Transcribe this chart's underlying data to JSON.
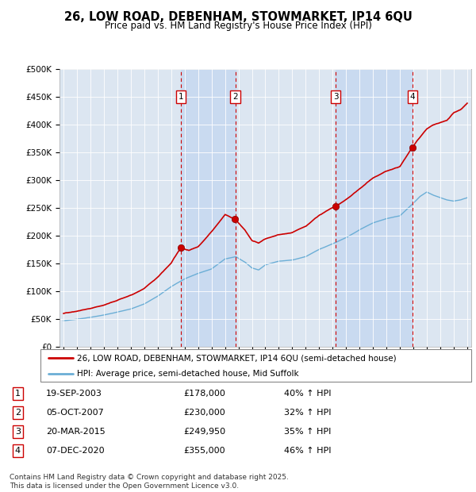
{
  "title": "26, LOW ROAD, DEBENHAM, STOWMARKET, IP14 6QU",
  "subtitle": "Price paid vs. HM Land Registry's House Price Index (HPI)",
  "house_color": "#cc0000",
  "hpi_color": "#6baed6",
  "shade_color": "#c6d9f0",
  "plot_bg": "#dce6f1",
  "legend_house": "26, LOW ROAD, DEBENHAM, STOWMARKET, IP14 6QU (semi-detached house)",
  "legend_hpi": "HPI: Average price, semi-detached house, Mid Suffolk",
  "footer": "Contains HM Land Registry data © Crown copyright and database right 2025.\nThis data is licensed under the Open Government Licence v3.0.",
  "transactions": [
    {
      "num": 1,
      "date": "19-SEP-2003",
      "price": "£178,000",
      "change": "40% ↑ HPI",
      "year": 2003.72,
      "house_val": 178000
    },
    {
      "num": 2,
      "date": "05-OCT-2007",
      "price": "£230,000",
      "change": "32% ↑ HPI",
      "year": 2007.76,
      "house_val": 230000
    },
    {
      "num": 3,
      "date": "20-MAR-2015",
      "price": "£249,950",
      "change": "35% ↑ HPI",
      "year": 2015.22,
      "house_val": 249950
    },
    {
      "num": 4,
      "date": "07-DEC-2020",
      "price": "£355,000",
      "change": "46% ↑ HPI",
      "year": 2020.93,
      "house_val": 355000
    }
  ],
  "ylim": [
    0,
    500000
  ],
  "xlim": [
    1994.7,
    2025.3
  ],
  "ytick_vals": [
    0,
    50000,
    100000,
    150000,
    200000,
    250000,
    300000,
    350000,
    400000,
    450000,
    500000
  ],
  "ytick_labels": [
    "£0",
    "£50K",
    "£100K",
    "£150K",
    "£200K",
    "£250K",
    "£300K",
    "£350K",
    "£400K",
    "£450K",
    "£500K"
  ]
}
